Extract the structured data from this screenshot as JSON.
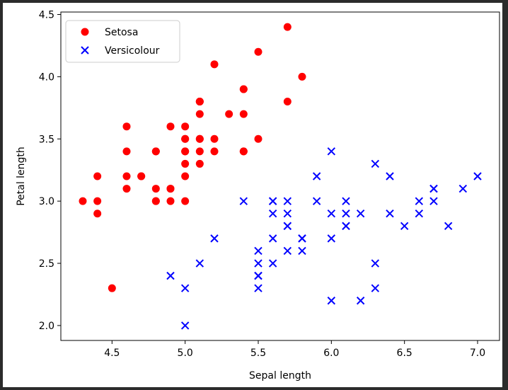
{
  "chart_data": {
    "type": "scatter",
    "title": "",
    "xlabel": "Sepal length",
    "ylabel": "Petal length",
    "xlim": [
      4.15,
      7.15
    ],
    "ylim": [
      1.88,
      4.52
    ],
    "xticks": [
      4.5,
      5.0,
      5.5,
      6.0,
      6.5,
      7.0
    ],
    "xtick_labels": [
      "4.5",
      "5.0",
      "5.5",
      "6.0",
      "6.5",
      "7.0"
    ],
    "yticks": [
      2.0,
      2.5,
      3.0,
      3.5,
      4.0,
      4.5
    ],
    "ytick_labels": [
      "2.0",
      "2.5",
      "3.0",
      "3.5",
      "4.0",
      "4.5"
    ],
    "grid": false,
    "legend_position": "top-left",
    "series": [
      {
        "name": "Setosa",
        "marker": "o",
        "color": "#ff0000",
        "x": [
          5.1,
          4.9,
          4.7,
          4.6,
          5.0,
          5.4,
          4.6,
          5.0,
          4.4,
          4.9,
          5.4,
          4.8,
          4.8,
          4.3,
          5.8,
          5.7,
          5.4,
          5.1,
          5.7,
          5.1,
          5.4,
          5.1,
          4.6,
          5.1,
          4.8,
          5.0,
          5.0,
          5.2,
          5.2,
          4.7,
          4.8,
          5.4,
          5.2,
          5.5,
          4.9,
          5.0,
          5.5,
          4.9,
          4.4,
          5.1,
          5.0,
          4.5,
          4.4,
          5.0,
          5.1,
          4.8,
          5.1,
          4.6,
          5.3,
          5.0
        ],
        "y": [
          3.5,
          3.0,
          3.2,
          3.1,
          3.6,
          3.9,
          3.4,
          3.4,
          2.9,
          3.1,
          3.7,
          3.4,
          3.0,
          3.0,
          4.0,
          4.4,
          3.9,
          3.5,
          3.8,
          3.8,
          3.4,
          3.7,
          3.6,
          3.3,
          3.4,
          3.0,
          3.4,
          3.5,
          3.4,
          3.2,
          3.1,
          3.4,
          4.1,
          4.2,
          3.1,
          3.2,
          3.5,
          3.6,
          3.0,
          3.4,
          3.5,
          2.3,
          3.2,
          3.5,
          3.8,
          3.0,
          3.8,
          3.2,
          3.7,
          3.3
        ]
      },
      {
        "name": "Versicolour",
        "marker": "x",
        "color": "#0000ff",
        "x": [
          7.0,
          6.4,
          6.9,
          5.5,
          6.5,
          5.7,
          6.3,
          4.9,
          6.6,
          5.2,
          5.0,
          5.9,
          6.0,
          6.1,
          5.6,
          6.7,
          5.6,
          5.8,
          6.2,
          5.6,
          5.9,
          6.1,
          6.3,
          6.1,
          6.4,
          6.6,
          6.8,
          6.7,
          6.0,
          5.7,
          5.5,
          5.5,
          5.8,
          6.0,
          5.4,
          6.0,
          6.7,
          6.3,
          5.6,
          5.5,
          5.5,
          6.1,
          5.8,
          5.0,
          5.6,
          5.7,
          5.7,
          6.2,
          5.1,
          5.7
        ],
        "y": [
          3.2,
          3.2,
          3.1,
          2.3,
          2.8,
          2.8,
          3.3,
          2.4,
          2.9,
          2.7,
          2.0,
          3.0,
          2.2,
          2.9,
          2.9,
          3.1,
          3.0,
          2.7,
          2.2,
          2.5,
          3.2,
          2.8,
          2.5,
          2.8,
          2.9,
          3.0,
          2.8,
          3.0,
          2.9,
          2.6,
          2.4,
          2.4,
          2.7,
          2.7,
          3.0,
          3.4,
          3.1,
          2.3,
          3.0,
          2.5,
          2.6,
          3.0,
          2.6,
          2.3,
          2.7,
          3.0,
          2.9,
          2.9,
          2.5,
          2.8
        ]
      }
    ]
  }
}
